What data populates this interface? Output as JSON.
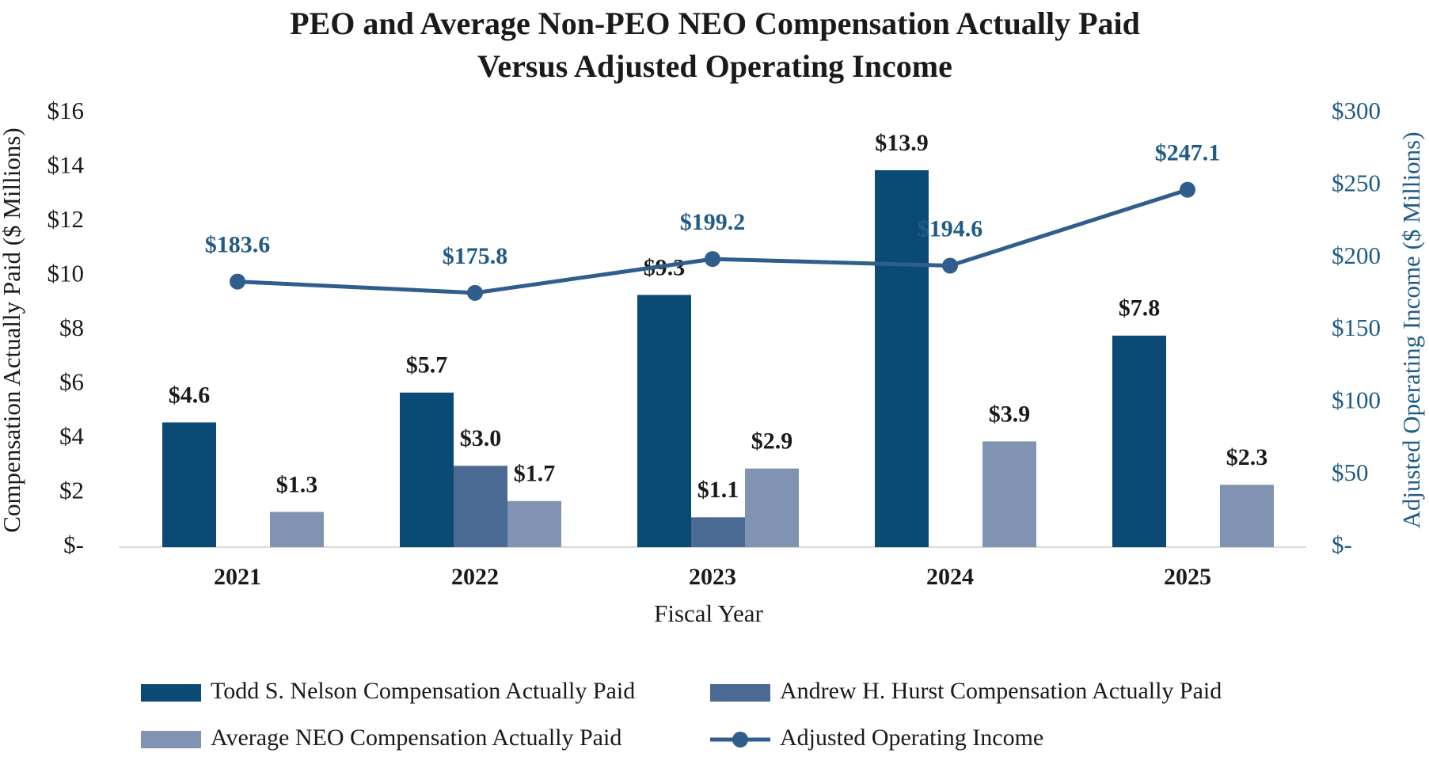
{
  "chart_data": {
    "type": "bar",
    "title": [
      "PEO and Average Non-PEO NEO Compensation Actually Paid",
      "Versus Adjusted Operating Income"
    ],
    "categories": [
      "2021",
      "2022",
      "2023",
      "2024",
      "2025"
    ],
    "xlabel": "Fiscal Year",
    "ylabel": "Compensation Actually Paid ($ Millions)",
    "y2label": "Adjusted Operating Income ($ Millions)",
    "ylim": [
      0,
      16
    ],
    "y2lim": [
      0,
      300
    ],
    "yticks": [
      "$-",
      "$2",
      "$4",
      "$6",
      "$8",
      "$10",
      "$12",
      "$14",
      "$16"
    ],
    "y2ticks": [
      "$-",
      "$50",
      "$100",
      "$150",
      "$200",
      "$250",
      "$300"
    ],
    "gridlines": false,
    "series": [
      {
        "name": "Todd S. Nelson Compensation Actually Paid",
        "kind": "bar",
        "axis": "left",
        "color": "#0b4a75",
        "values": [
          4.6,
          5.7,
          9.3,
          13.9,
          7.8
        ],
        "labels": [
          "$4.6",
          "$5.7",
          "$9.3",
          "$13.9",
          "$7.8"
        ]
      },
      {
        "name": "Andrew H. Hurst Compensation Actually Paid",
        "kind": "bar",
        "axis": "left",
        "color": "#4a6a93",
        "values": [
          null,
          3.0,
          1.1,
          null,
          null
        ],
        "labels": [
          null,
          "$3.0",
          "$1.1",
          null,
          null
        ]
      },
      {
        "name": "Average NEO Compensation Actually Paid",
        "kind": "bar",
        "axis": "left",
        "color": "#8193b2",
        "values": [
          1.3,
          1.7,
          2.9,
          3.9,
          2.3
        ],
        "labels": [
          "$1.3",
          "$1.7",
          "$2.9",
          "$3.9",
          "$2.3"
        ]
      },
      {
        "name": "Adjusted Operating Income",
        "kind": "line",
        "axis": "right",
        "color": "#2f5d8c",
        "values": [
          183.6,
          175.8,
          199.2,
          194.6,
          247.1
        ],
        "labels": [
          "$183.6",
          "$175.8",
          "$199.2",
          "$194.6",
          "$247.1"
        ]
      }
    ],
    "legend": {
      "position": "bottom",
      "order": [
        0,
        1,
        2,
        3
      ]
    }
  }
}
